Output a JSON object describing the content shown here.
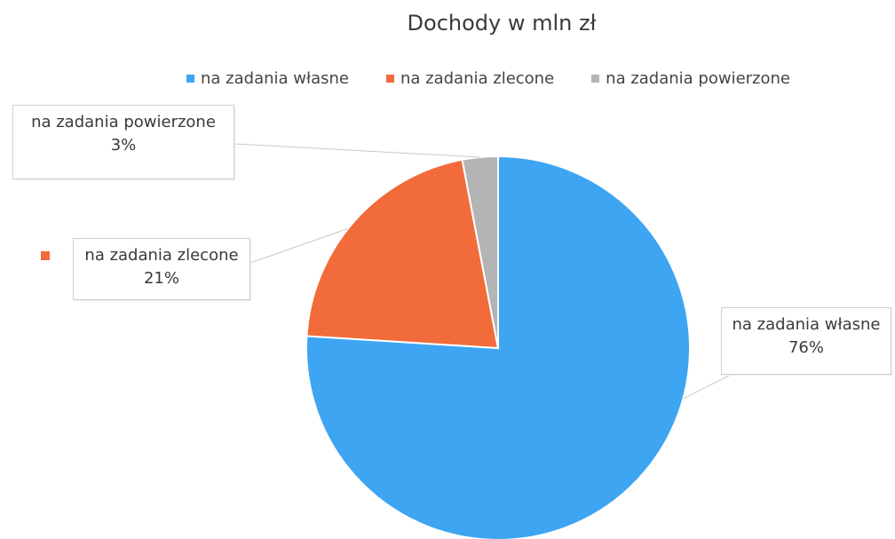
{
  "chart_data": {
    "type": "pie",
    "title": "Dochody w mln zł",
    "categories": [
      "na zadania własne",
      "na zadania zlecone",
      "na zadania powierzone"
    ],
    "values": [
      76,
      21,
      3
    ],
    "value_unit": "%",
    "colors": [
      "#3DA5F2",
      "#F26B3A",
      "#B4B4B4"
    ],
    "legend_position": "top",
    "start_angle_deg": 0,
    "direction": "clockwise",
    "data_labels": [
      {
        "name": "na zadania własne",
        "value": "76%"
      },
      {
        "name": "na zadania zlecone",
        "value": "21%"
      },
      {
        "name": "na zadania powierzone",
        "value": "3%"
      }
    ]
  }
}
